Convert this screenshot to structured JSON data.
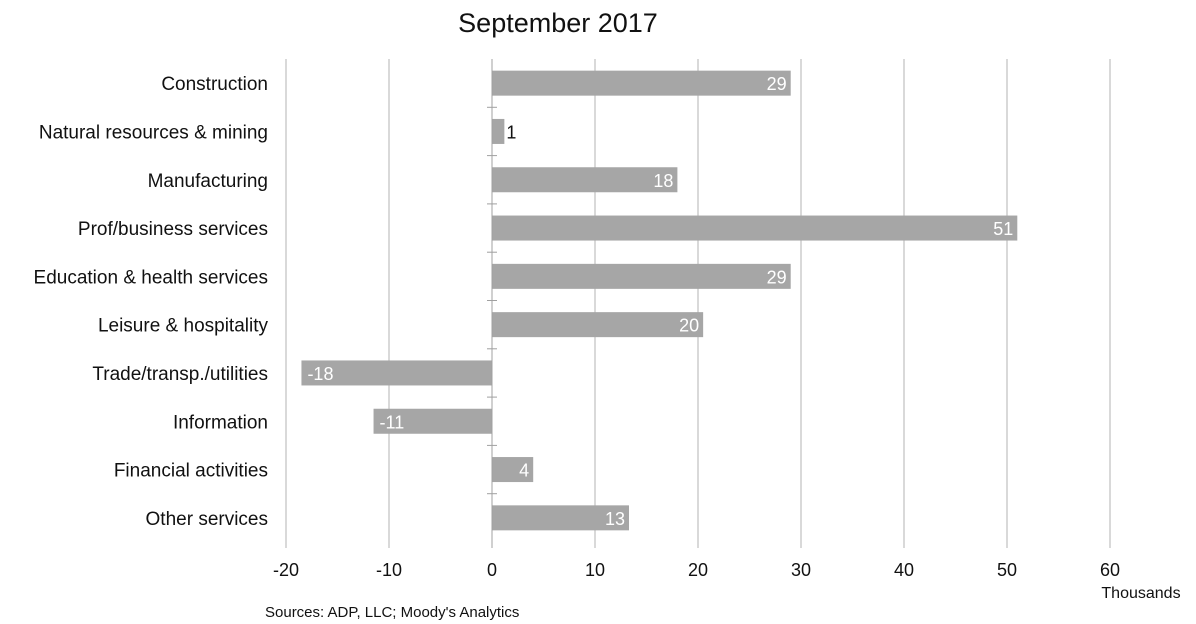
{
  "chart_data": {
    "type": "bar",
    "orientation": "horizontal",
    "title": "September 2017",
    "categories": [
      "Construction",
      "Natural resources & mining",
      "Manufacturing",
      "Prof/business services",
      "Education & health services",
      "Leisure & hospitality",
      "Trade/transp./utilities",
      "Information",
      "Financial activities",
      "Other services"
    ],
    "values": [
      29,
      1.2,
      18,
      51,
      29,
      20.5,
      -18.5,
      -11.5,
      4,
      13.3
    ],
    "data_labels": [
      "29",
      "1",
      "18",
      "51",
      "29",
      "20",
      "-18",
      "-11",
      "4",
      "13"
    ],
    "xlabel": "Thousands",
    "ylabel": "",
    "xlim": [
      -20,
      60
    ],
    "xticks": [
      -20,
      -10,
      0,
      10,
      20,
      30,
      40,
      50,
      60
    ],
    "xtick_labels": [
      "-20",
      "-10",
      "0",
      "10",
      "20",
      "30",
      "40",
      "50",
      "60"
    ],
    "grid": true,
    "legend": "none",
    "bar_color": "#a6a6a6",
    "source": "Sources: ADP, LLC; Moody's Analytics"
  }
}
